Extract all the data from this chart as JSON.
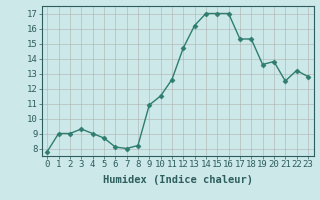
{
  "x": [
    0,
    1,
    2,
    3,
    4,
    5,
    6,
    7,
    8,
    9,
    10,
    11,
    12,
    13,
    14,
    15,
    16,
    17,
    18,
    19,
    20,
    21,
    22,
    23
  ],
  "y": [
    7.8,
    9.0,
    9.0,
    9.3,
    9.0,
    8.7,
    8.1,
    8.0,
    8.2,
    10.9,
    11.5,
    12.6,
    14.7,
    16.2,
    17.0,
    17.0,
    17.0,
    15.3,
    15.3,
    13.6,
    13.8,
    12.5,
    13.2,
    12.8
  ],
  "line_color": "#2e7d6e",
  "marker": "D",
  "marker_size": 2.5,
  "background_color": "#cce8e8",
  "grid_color": "#aaaaaa",
  "xlabel": "Humidex (Indice chaleur)",
  "ylim": [
    7.5,
    17.5
  ],
  "xlim": [
    -0.5,
    23.5
  ],
  "yticks": [
    8,
    9,
    10,
    11,
    12,
    13,
    14,
    15,
    16,
    17
  ],
  "xticks": [
    0,
    1,
    2,
    3,
    4,
    5,
    6,
    7,
    8,
    9,
    10,
    11,
    12,
    13,
    14,
    15,
    16,
    17,
    18,
    19,
    20,
    21,
    22,
    23
  ],
  "tick_label_fontsize": 6.5,
  "xlabel_fontsize": 7.5,
  "line_width": 1.0
}
